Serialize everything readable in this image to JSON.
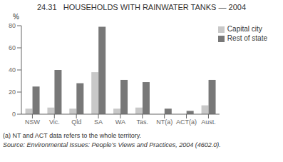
{
  "chart_data": {
    "type": "bar",
    "title": "24.31   HOUSEHOLDS WITH RAINWATER TANKS — 2004",
    "ylabel": "%",
    "categories": [
      "NSW",
      "Vic.",
      "Qld",
      "SA",
      "WA",
      "Tas.",
      "NT(a)",
      "ACT(a)",
      "Aust."
    ],
    "series": [
      {
        "name": "Capital city",
        "color": "#c8c8c8",
        "values": [
          5,
          6,
          5,
          38,
          5,
          6,
          0,
          0,
          8
        ]
      },
      {
        "name": "Rest of state",
        "color": "#787878",
        "values": [
          25,
          40,
          28,
          79,
          31,
          29,
          5,
          3,
          31
        ]
      }
    ],
    "ylim": [
      0,
      80
    ],
    "yticks": [
      0,
      20,
      40,
      60,
      80
    ],
    "legend": "upper right",
    "grid": false,
    "annotations": [
      "(a) NT and ACT data refers to the whole territory.",
      "Source: Environmental Issues: People’s Views and Practices, 2004 (4602.0)."
    ]
  }
}
